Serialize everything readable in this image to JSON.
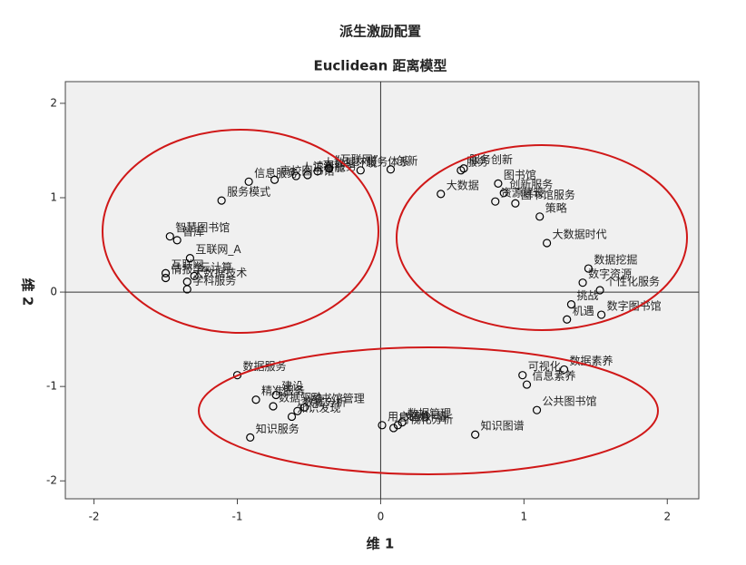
{
  "chart_data": {
    "type": "scatter",
    "title": "派生激励配置",
    "subtitle": "Euclidean 距离模型",
    "x_label": "维 1",
    "y_label": "维 2",
    "xlim": [
      -2.2,
      2.22
    ],
    "ylim": [
      -2.19,
      2.23
    ],
    "xticks": [
      -2,
      -1,
      0,
      1,
      2
    ],
    "yticks": [
      -2,
      -1,
      0,
      1,
      2
    ],
    "color": "#000000",
    "zero_lines": true,
    "labels": [
      "信息服务",
      "高校图书馆",
      "人工智能",
      "读者服务",
      "大数据环境",
      "“互联网”",
      "服务体系",
      "创新",
      "服务创新",
      "服务",
      "大数据",
      "创新服务",
      "图书馆",
      "资源建设",
      "图书馆服务",
      "策略",
      "大数据时代",
      "数据挖掘",
      "数字资源",
      "个性化服务",
      "挑战",
      "机遇",
      "数字图书馆",
      "数据素养",
      "可视化",
      "信息素养",
      "公共图书馆",
      "知识图谱",
      "用户画像",
      "可视化分析",
      "文献计量",
      "数据管理",
      "数据服务",
      "建设",
      "图书馆管理",
      "数据分析",
      "精准服务",
      "数据驱动",
      "知识发现",
      "知识服务",
      "服务模式",
      "智慧图书馆",
      "智库",
      "互联网",
      "情报学",
      "互联网_A",
      "云计算",
      "大数据技术",
      "学科服务"
    ],
    "x": [
      -0.92,
      -0.74,
      -0.59,
      -0.51,
      -0.44,
      -0.36,
      -0.14,
      0.07,
      0.58,
      0.56,
      0.42,
      0.86,
      0.82,
      0.8,
      0.94,
      1.11,
      1.16,
      1.45,
      1.41,
      1.53,
      1.33,
      1.3,
      1.54,
      1.28,
      0.99,
      1.02,
      1.09,
      0.66,
      0.01,
      0.09,
      0.12,
      0.15,
      -1.0,
      -0.73,
      -0.53,
      -0.58,
      -0.87,
      -0.75,
      -0.62,
      -0.91,
      -1.11,
      -1.47,
      -1.42,
      -1.5,
      -1.5,
      -1.33,
      -1.3,
      -1.35,
      -1.35
    ],
    "y": [
      1.17,
      1.19,
      1.23,
      1.24,
      1.28,
      1.31,
      1.29,
      1.3,
      1.31,
      1.29,
      1.04,
      1.05,
      1.15,
      0.96,
      0.94,
      0.8,
      0.52,
      0.25,
      0.1,
      0.02,
      -0.13,
      -0.29,
      -0.24,
      -0.82,
      -0.88,
      -0.98,
      -1.25,
      -1.51,
      -1.41,
      -1.44,
      -1.41,
      -1.38,
      -0.88,
      -1.09,
      -1.22,
      -1.26,
      -1.14,
      -1.21,
      -1.32,
      -1.54,
      0.97,
      0.59,
      0.55,
      0.2,
      0.15,
      0.36,
      0.17,
      0.11,
      0.03
    ]
  }
}
